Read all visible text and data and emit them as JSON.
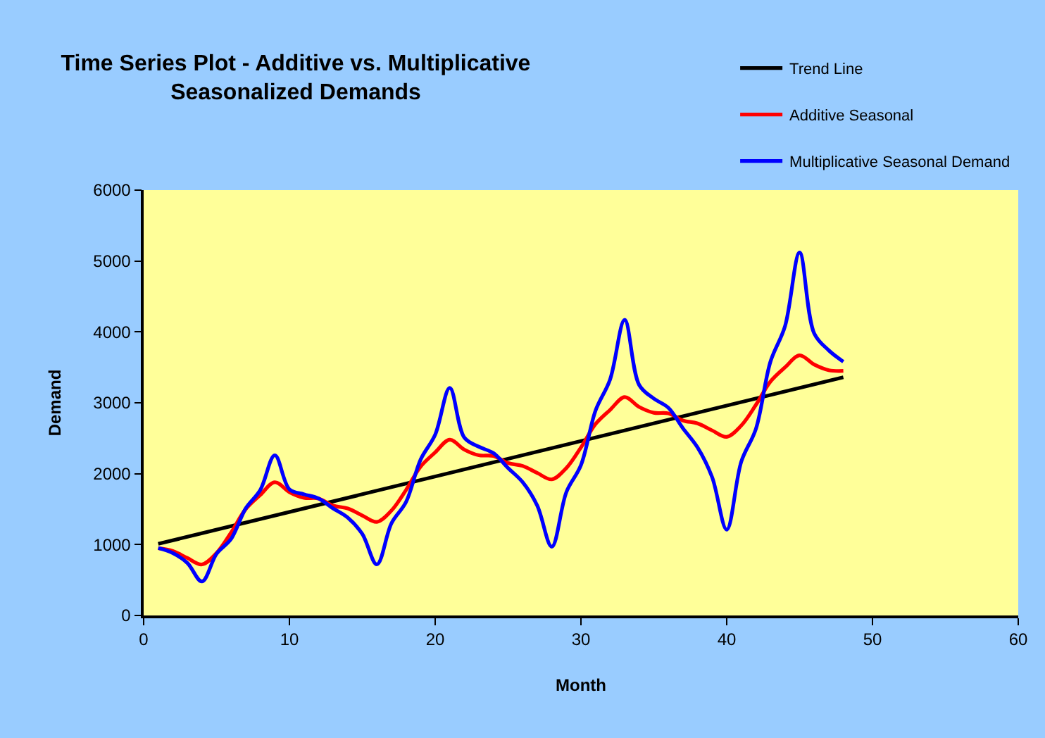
{
  "chart_data": {
    "type": "line",
    "title": "Time Series Plot - Additive vs. Multiplicative Seasonalized Demands",
    "xlabel": "Month",
    "ylabel": "Demand",
    "xlim": [
      0,
      60
    ],
    "xticks": [
      0,
      10,
      20,
      30,
      40,
      50,
      60
    ],
    "ylim": [
      0,
      6000
    ],
    "yticks": [
      0,
      1000,
      2000,
      3000,
      4000,
      5000,
      6000
    ],
    "legend": "top right",
    "line_style": "solid",
    "x": [
      1,
      2,
      3,
      4,
      5,
      6,
      7,
      8,
      9,
      10,
      11,
      12,
      13,
      14,
      15,
      16,
      17,
      18,
      19,
      20,
      21,
      22,
      23,
      24,
      25,
      26,
      27,
      28,
      29,
      30,
      31,
      32,
      33,
      34,
      35,
      36,
      37,
      38,
      39,
      40,
      41,
      42,
      43,
      44,
      45,
      46,
      47,
      48
    ],
    "series": [
      {
        "name": "Trend Line",
        "color": "#000000",
        "x": [
          1,
          48
        ],
        "values": [
          1010,
          3360
        ]
      },
      {
        "name": "Additive Seasonal",
        "color": "#ff0000",
        "values": [
          950,
          910,
          810,
          720,
          880,
          1170,
          1500,
          1700,
          1880,
          1740,
          1660,
          1650,
          1550,
          1510,
          1410,
          1320,
          1480,
          1770,
          2100,
          2300,
          2480,
          2340,
          2260,
          2250,
          2150,
          2110,
          2010,
          1920,
          2080,
          2370,
          2700,
          2900,
          3080,
          2940,
          2860,
          2850,
          2750,
          2710,
          2610,
          2520,
          2680,
          2970,
          3300,
          3500,
          3670,
          3540,
          3460,
          3450
        ]
      },
      {
        "name": "Multiplicative Seasonal Demand",
        "color": "#0000ff",
        "values": [
          950,
          880,
          740,
          480,
          870,
          1080,
          1510,
          1770,
          2260,
          1780,
          1710,
          1650,
          1510,
          1380,
          1150,
          720,
          1300,
          1600,
          2200,
          2550,
          3210,
          2510,
          2380,
          2290,
          2080,
          1880,
          1550,
          970,
          1740,
          2120,
          2890,
          3330,
          4170,
          3250,
          3060,
          2930,
          2640,
          2370,
          1950,
          1210,
          2170,
          2630,
          3580,
          4080,
          5120,
          3980,
          3740,
          3580
        ]
      }
    ]
  }
}
